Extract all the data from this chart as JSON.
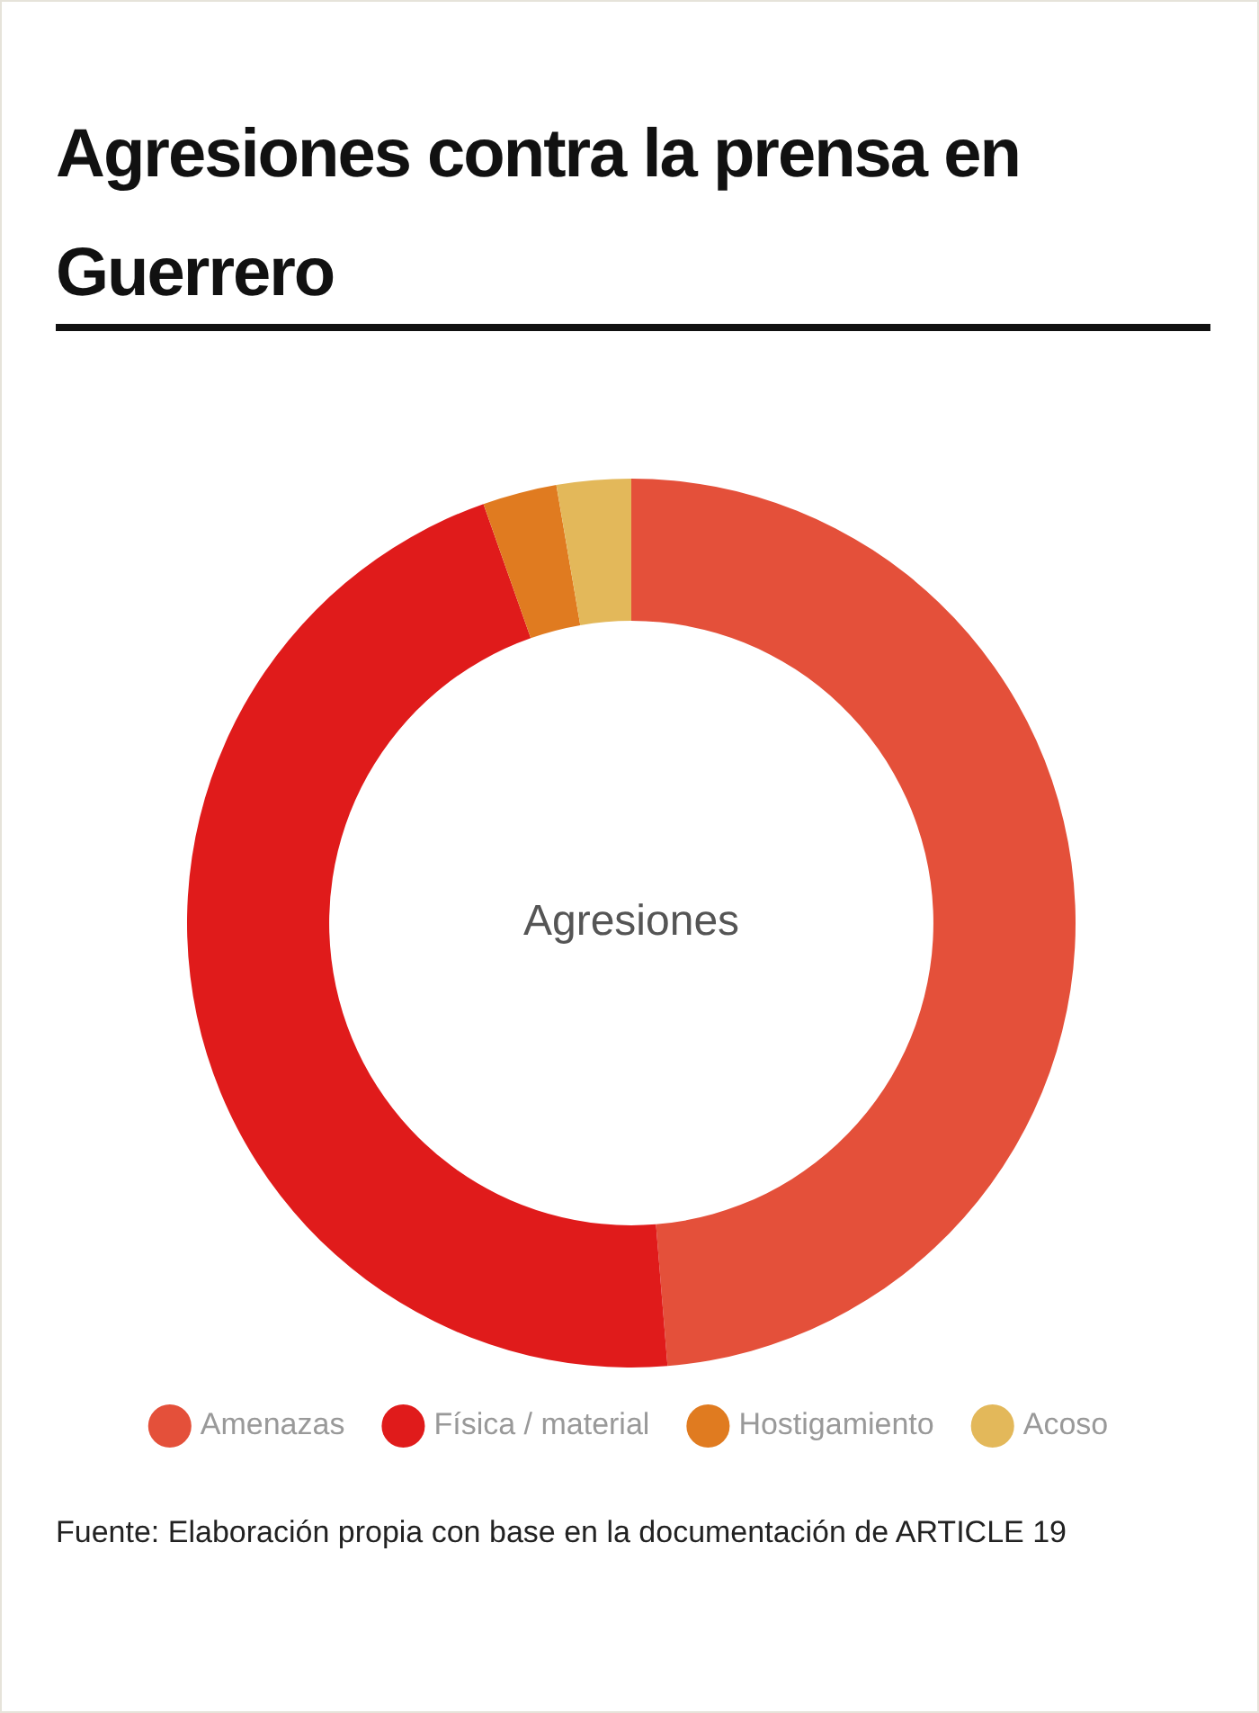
{
  "chart_data": {
    "type": "donut",
    "title": "Agresiones contra la prensa en Guerrero",
    "categories": [
      "Amenazas",
      "Física / material",
      "Hostigamiento",
      "Acoso"
    ],
    "values": [
      48.7,
      45.9,
      2.7,
      2.7
    ],
    "colors": [
      "#e4503a",
      "#e01b1b",
      "#e07b20",
      "#e3b85a"
    ],
    "legend": "bottom",
    "annotations": [
      "Agresiones",
      "Fuente: Elaboración propia con base en la documentación de ARTICLE 19"
    ]
  }
}
